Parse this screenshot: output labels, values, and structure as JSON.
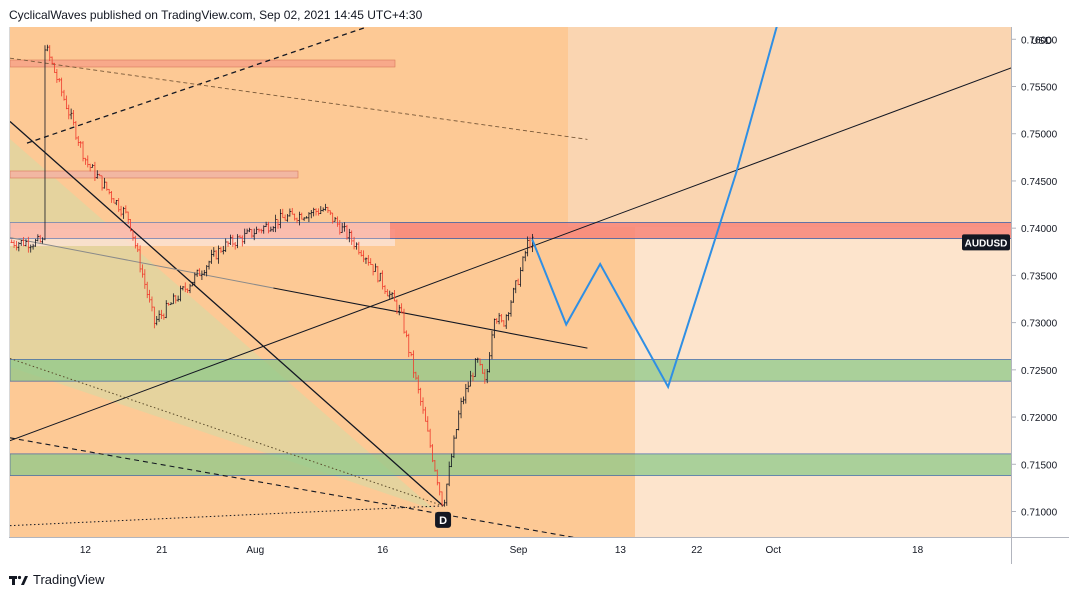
{
  "header": {
    "text": "CyclicalWaves published on TradingView.com, Sep 02, 2021 14:45 UTC+4:30"
  },
  "footer": {
    "brand": "TradingView"
  },
  "axis": {
    "currency": "USD"
  },
  "symbol_label": "AUDUSD",
  "wave_marker": "D",
  "colors": {
    "background": "#fde4cc",
    "history_zone": "#fdc995",
    "upper_zone": "#f9d3ae",
    "resistance_zone": "#f8877a",
    "support_zone": "#8fca8a",
    "projection": "#2f8fe4",
    "bull_candle": "#131722",
    "bear_candle": "#ef3b2c"
  },
  "chart_data": {
    "type": "candlestick",
    "symbol": "AUDUSD",
    "y_unit": "USD",
    "x_ticks": [
      {
        "label": "12",
        "day": 12
      },
      {
        "label": "21",
        "day": 21
      },
      {
        "label": "Aug",
        "day": 32
      },
      {
        "label": "16",
        "day": 47
      },
      {
        "label": "Sep",
        "day": 63
      },
      {
        "label": "13",
        "day": 75
      },
      {
        "label": "22",
        "day": 84
      },
      {
        "label": "Oct",
        "day": 93
      },
      {
        "label": "18",
        "day": 110
      }
    ],
    "y_ticks": [
      "0.76000",
      "0.75500",
      "0.75000",
      "0.74500",
      "0.74000",
      "0.73500",
      "0.73000",
      "0.72500",
      "0.72000",
      "0.71500",
      "0.71000"
    ],
    "y_range": [
      0.7073,
      0.7613
    ],
    "x_range_days": [
      3,
      121
    ],
    "key_prices": [
      {
        "day": 7,
        "price": 0.7597
      },
      {
        "day": 12,
        "price": 0.747
      },
      {
        "day": 17,
        "price": 0.741
      },
      {
        "day": 20,
        "price": 0.73
      },
      {
        "day": 28,
        "price": 0.738
      },
      {
        "day": 35,
        "price": 0.741
      },
      {
        "day": 40,
        "price": 0.742
      },
      {
        "day": 45,
        "price": 0.737
      },
      {
        "day": 49,
        "price": 0.731
      },
      {
        "day": 52,
        "price": 0.719
      },
      {
        "day": 54,
        "price": 0.7106
      },
      {
        "day": 56,
        "price": 0.721
      },
      {
        "day": 58,
        "price": 0.726
      },
      {
        "day": 59,
        "price": 0.7233
      },
      {
        "day": 60,
        "price": 0.731
      },
      {
        "day": 61,
        "price": 0.7297
      },
      {
        "day": 63,
        "price": 0.735
      },
      {
        "day": 64,
        "price": 0.7385
      }
    ],
    "projection_path": [
      {
        "day": 64.5,
        "price": 0.7388
      },
      {
        "day": 68.5,
        "price": 0.7298
      },
      {
        "day": 72.5,
        "price": 0.7362
      },
      {
        "day": 80.5,
        "price": 0.7232
      },
      {
        "day": 88.5,
        "price": 0.7458
      },
      {
        "day": 93.5,
        "price": 0.762
      }
    ],
    "zones": [
      {
        "name": "resistance",
        "from": 0.7389,
        "to": 0.7406
      },
      {
        "name": "support-upper",
        "from": 0.7238,
        "to": 0.7261
      },
      {
        "name": "support-lower",
        "from": 0.7138,
        "to": 0.7161
      }
    ],
    "last_price_label": "AUDUSD",
    "grid": false
  }
}
